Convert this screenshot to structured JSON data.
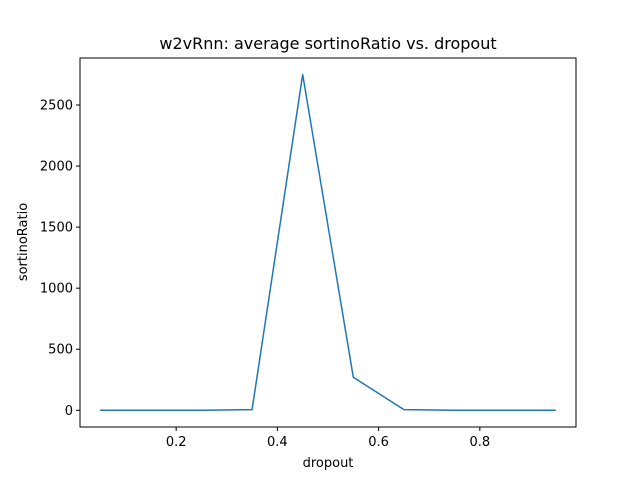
{
  "chart_data": {
    "type": "line",
    "title": "w2vRnn: average sortinoRatio vs. dropout",
    "xlabel": "dropout",
    "ylabel": "sortinoRatio",
    "xlim": [
      0.01,
      0.99
    ],
    "ylim": [
      -137,
      2885
    ],
    "x_ticks": [
      0.2,
      0.4,
      0.6,
      0.8
    ],
    "x_tick_labels": [
      "0.2",
      "0.4",
      "0.6",
      "0.8"
    ],
    "y_ticks": [
      0,
      500,
      1000,
      1500,
      2000,
      2500
    ],
    "y_tick_labels": [
      "0",
      "500",
      "1000",
      "1500",
      "2000",
      "2500"
    ],
    "grid": false,
    "series": [
      {
        "color": "#1f77b4",
        "x": [
          0.05,
          0.15,
          0.25,
          0.35,
          0.45,
          0.55,
          0.65,
          0.75,
          0.85,
          0.95
        ],
        "y": [
          0,
          0,
          0,
          5,
          2750,
          270,
          5,
          0,
          0,
          0
        ]
      }
    ]
  }
}
